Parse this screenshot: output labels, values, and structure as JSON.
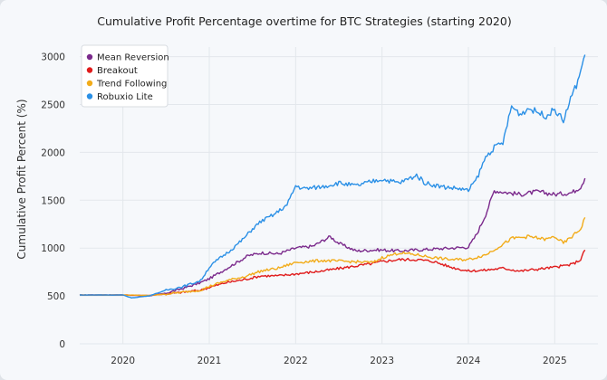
{
  "chart_data": {
    "type": "line",
    "title": "Cumulative Profit Percentage overtime for BTC Strategies (starting 2020)",
    "xlabel": "",
    "ylabel": "Cumulative Profit Percent (%)",
    "xlim": [
      2019.5,
      2025.5
    ],
    "ylim": [
      0,
      3100
    ],
    "x_ticks": [
      "2020",
      "2021",
      "2022",
      "2023",
      "2024",
      "2025"
    ],
    "y_ticks": [
      "0",
      "500",
      "1000",
      "1500",
      "2000",
      "2500",
      "3000"
    ],
    "grid": true,
    "legend": "top-left",
    "series": [
      {
        "name": "Mean Reversion",
        "color": "#7b2a8c",
        "x": [
          2019.5,
          2020.0,
          2020.3,
          2020.5,
          2020.7,
          2020.9,
          2021.0,
          2021.15,
          2021.3,
          2021.45,
          2021.6,
          2021.8,
          2022.0,
          2022.2,
          2022.4,
          2022.5,
          2022.7,
          2022.9,
          2023.0,
          2023.2,
          2023.4,
          2023.6,
          2023.8,
          2024.0,
          2024.1,
          2024.2,
          2024.3,
          2024.45,
          2024.6,
          2024.8,
          2025.0,
          2025.2,
          2025.3,
          2025.35
        ],
        "y": [
          510,
          510,
          500,
          530,
          580,
          640,
          680,
          760,
          840,
          920,
          950,
          940,
          1000,
          1020,
          1120,
          1050,
          970,
          980,
          980,
          970,
          980,
          990,
          1000,
          1010,
          1150,
          1350,
          1600,
          1580,
          1560,
          1590,
          1560,
          1580,
          1640,
          1730
        ]
      },
      {
        "name": "Breakout",
        "color": "#e01b1b",
        "x": [
          2019.5,
          2020.0,
          2020.3,
          2020.5,
          2020.7,
          2020.9,
          2021.0,
          2021.2,
          2021.4,
          2021.6,
          2021.8,
          2022.0,
          2022.3,
          2022.6,
          2022.9,
          2023.0,
          2023.2,
          2023.4,
          2023.6,
          2023.8,
          2024.0,
          2024.2,
          2024.4,
          2024.6,
          2024.8,
          2025.0,
          2025.2,
          2025.3,
          2025.35
        ],
        "y": [
          510,
          510,
          505,
          520,
          540,
          560,
          590,
          640,
          670,
          710,
          710,
          730,
          760,
          800,
          840,
          860,
          880,
          880,
          860,
          800,
          760,
          770,
          790,
          760,
          780,
          800,
          830,
          880,
          980
        ]
      },
      {
        "name": "Trend Following",
        "color": "#f2ac1a",
        "x": [
          2019.5,
          2020.0,
          2020.3,
          2020.5,
          2020.7,
          2020.9,
          2021.0,
          2021.2,
          2021.4,
          2021.6,
          2021.8,
          2022.0,
          2022.3,
          2022.6,
          2022.9,
          2023.0,
          2023.2,
          2023.4,
          2023.6,
          2023.8,
          2024.0,
          2024.2,
          2024.4,
          2024.5,
          2024.7,
          2024.9,
          2025.0,
          2025.1,
          2025.2,
          2025.3,
          2025.35
        ],
        "y": [
          510,
          510,
          505,
          520,
          540,
          560,
          600,
          660,
          700,
          760,
          790,
          850,
          870,
          860,
          850,
          900,
          950,
          930,
          900,
          880,
          880,
          930,
          1040,
          1100,
          1120,
          1090,
          1120,
          1050,
          1120,
          1200,
          1320
        ]
      },
      {
        "name": "Robuxio Lite",
        "color": "#2b90e6",
        "x": [
          2019.5,
          2020.0,
          2020.1,
          2020.3,
          2020.5,
          2020.7,
          2020.9,
          2021.0,
          2021.1,
          2021.25,
          2021.4,
          2021.5,
          2021.6,
          2021.75,
          2021.9,
          2022.0,
          2022.1,
          2022.3,
          2022.5,
          2022.7,
          2022.9,
          2023.0,
          2023.2,
          2023.4,
          2023.5,
          2023.7,
          2023.9,
          2024.0,
          2024.1,
          2024.2,
          2024.3,
          2024.4,
          2024.5,
          2024.6,
          2024.7,
          2024.9,
          2025.0,
          2025.1,
          2025.2,
          2025.25,
          2025.3,
          2025.35
        ],
        "y": [
          510,
          510,
          480,
          500,
          560,
          600,
          660,
          800,
          880,
          980,
          1100,
          1200,
          1280,
          1350,
          1450,
          1650,
          1620,
          1640,
          1680,
          1650,
          1700,
          1720,
          1680,
          1760,
          1680,
          1640,
          1620,
          1600,
          1730,
          1950,
          2050,
          2100,
          2480,
          2400,
          2460,
          2380,
          2450,
          2330,
          2600,
          2700,
          2850,
          3020
        ]
      }
    ]
  }
}
